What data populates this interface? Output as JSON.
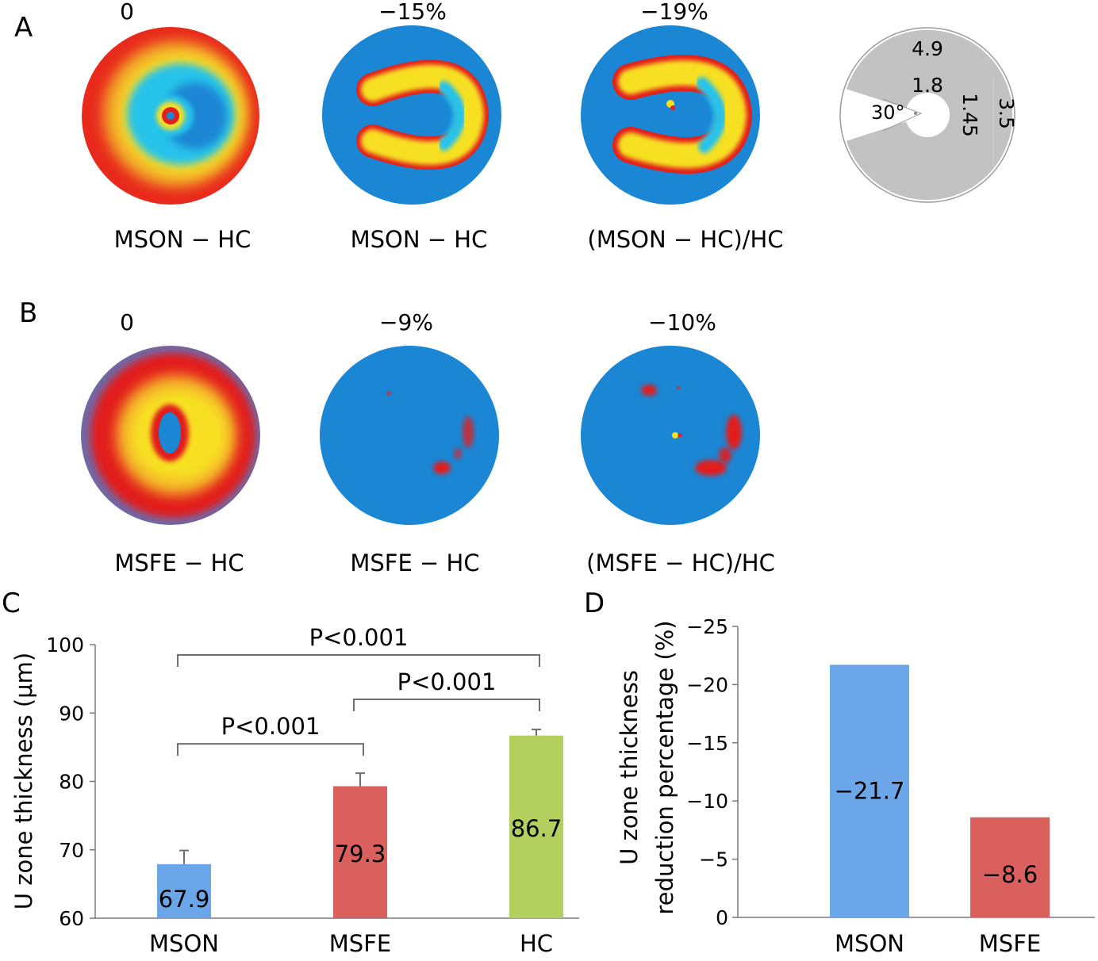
{
  "panel_a": {
    "letter": "A",
    "maps": [
      {
        "percent": "0",
        "caption": "MSON − HC"
      },
      {
        "percent": "−15%",
        "caption": "MSON − HC"
      },
      {
        "percent": "−19%",
        "caption": "(MSON − HC)/HC"
      }
    ],
    "schematic": {
      "outer": "4.9",
      "inner": "1.8",
      "angle": "30°",
      "width": "1.45",
      "radius": "3.5"
    }
  },
  "panel_b": {
    "letter": "B",
    "maps": [
      {
        "percent": "0",
        "caption": "MSFE − HC"
      },
      {
        "percent": "−9%",
        "caption": "MSFE − HC"
      },
      {
        "percent": "−10%",
        "caption": "(MSFE − HC)/HC"
      }
    ]
  },
  "colors": {
    "map_blue": "#1a86d4",
    "map_red": "#e21e1e",
    "map_yellow": "#f7e020",
    "map_cyan": "#27c3ea",
    "bar_blue": "#6aa6e8",
    "bar_red": "#d9605d",
    "bar_green": "#b3cf5e",
    "schematic_gray": "#c2c2c2"
  },
  "chart_data": [
    {
      "panel": "C",
      "type": "bar",
      "categories": [
        "MSON",
        "MSFE",
        "HC"
      ],
      "values": [
        67.9,
        79.3,
        86.7
      ],
      "value_labels": [
        "67.9",
        "79.3",
        "86.7"
      ],
      "error_bars": [
        2.0,
        1.9,
        0.9
      ],
      "bar_colors": [
        "#6aa6e8",
        "#d9605d",
        "#b3cf5e"
      ],
      "ylabel": "U zone thickness (μm)",
      "ylim": [
        60,
        100
      ],
      "yticks": [
        60,
        70,
        80,
        90,
        100
      ],
      "ytick_labels": [
        "60",
        "70",
        "80",
        "90",
        "100"
      ],
      "significance": [
        {
          "from": 0,
          "to": 2,
          "label": "P<0.001",
          "level": 98.5
        },
        {
          "from": 1,
          "to": 2,
          "label": "P<0.001",
          "level": 92
        },
        {
          "from": 0,
          "to": 1,
          "label": "P<0.001",
          "level": 85.5
        }
      ]
    },
    {
      "panel": "D",
      "type": "bar",
      "categories": [
        "MSON",
        "MSFE"
      ],
      "values": [
        -21.7,
        -8.6
      ],
      "value_labels": [
        "−21.7",
        "−8.6"
      ],
      "bar_colors": [
        "#6aa6e8",
        "#d9605d"
      ],
      "ylabel": [
        "U zone thickness",
        "reduction percentage (%)"
      ],
      "ylim": [
        0,
        -25
      ],
      "yticks": [
        0,
        -5,
        -10,
        -15,
        -20,
        -25
      ],
      "ytick_labels": [
        "0",
        "−5",
        "−10",
        "−15",
        "−20",
        "−25"
      ]
    }
  ]
}
